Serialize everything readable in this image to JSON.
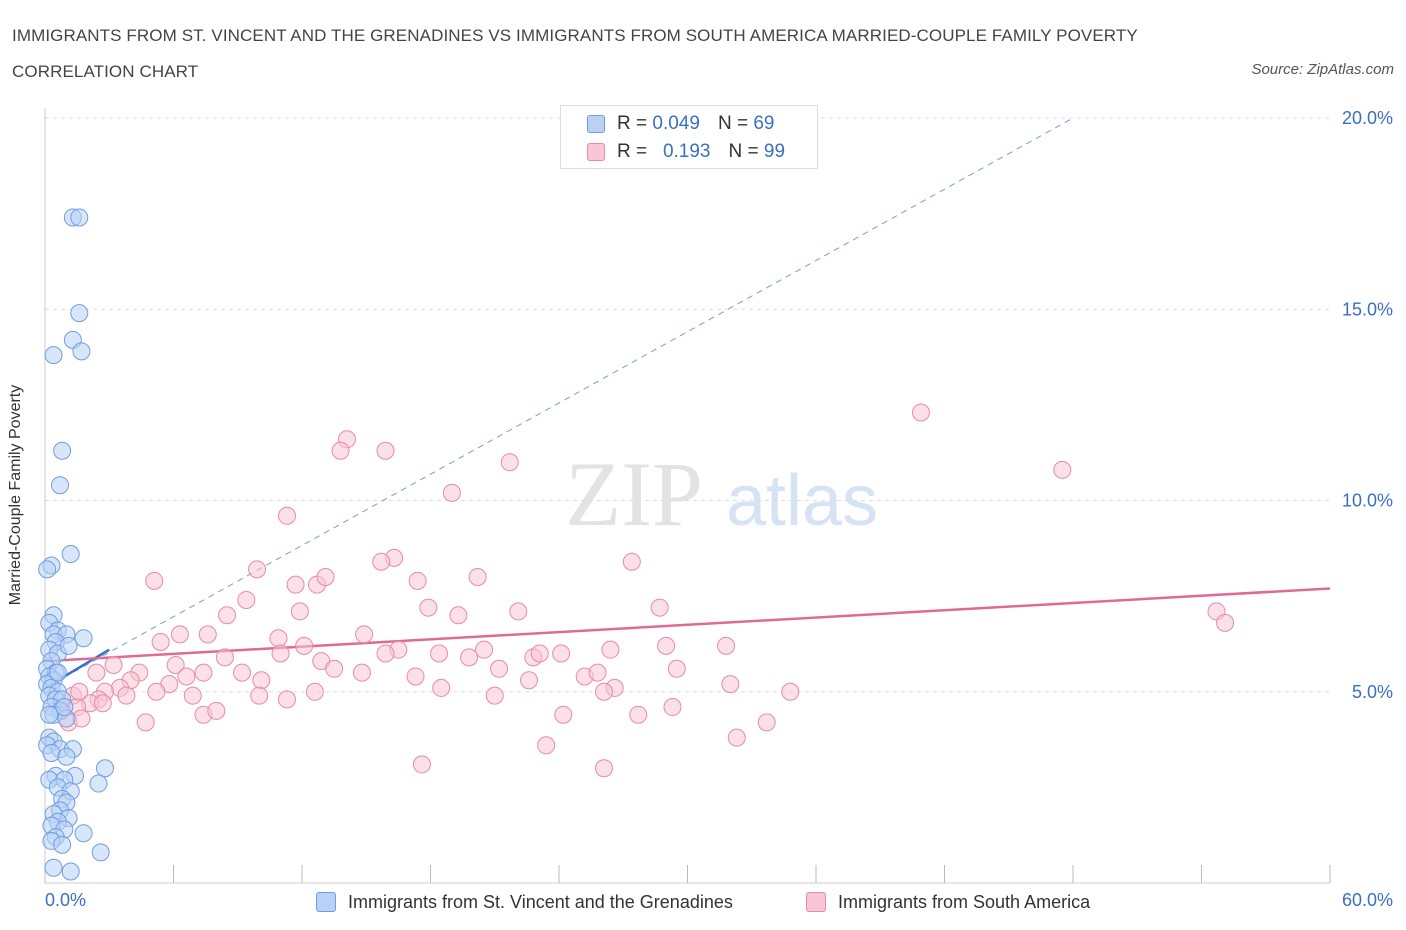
{
  "title": "IMMIGRANTS FROM ST. VINCENT AND THE GRENADINES VS IMMIGRANTS FROM SOUTH AMERICA MARRIED-COUPLE FAMILY POVERTY CORRELATION CHART",
  "source": "Source: ZipAtlas.com",
  "watermark": {
    "zip": "ZIP",
    "atlas": "atlas"
  },
  "legend": {
    "rows": [
      {
        "r_label": "R =",
        "r_value": "0.049",
        "n_label": "N =",
        "n_value": "69"
      },
      {
        "r_label": "R =",
        "r_value": "0.193",
        "n_label": "N =",
        "n_value": "99"
      }
    ]
  },
  "bottom_legend": [
    "Immigrants from St. Vincent and the Grenadines",
    "Immigrants from South America"
  ],
  "colors": {
    "blue_fill": "#b8d1f5",
    "blue_stroke": "#6f9ee0",
    "blue_line": "#3a6fd0",
    "pink_fill": "#f8c6d4",
    "pink_stroke": "#e98aa8",
    "pink_line": "#e06a96",
    "tick_label": "#3a6fc4",
    "grid": "#dddddd"
  },
  "chart_data": {
    "type": "scatter",
    "xlabel": "",
    "ylabel": "Married-Couple Family Poverty",
    "xlim": [
      0,
      60
    ],
    "ylim": [
      0,
      20
    ],
    "x_tick_labels": [
      "0.0%",
      "60.0%"
    ],
    "y_ticks": [
      5,
      10,
      15,
      20
    ],
    "y_tick_labels": [
      "5.0%",
      "10.0%",
      "15.0%",
      "20.0%"
    ],
    "grid": "horizontal dashed",
    "legend_placement": "top-center",
    "series": [
      {
        "name": "Immigrants from St. Vincent and the Grenadines",
        "r": 0.049,
        "n": 69,
        "trend_solid": [
          [
            0,
            5.1
          ],
          [
            3,
            6.1
          ]
        ],
        "trend_dashed": [
          [
            0,
            5.1
          ],
          [
            48,
            20
          ]
        ],
        "points": [
          [
            1.3,
            17.4
          ],
          [
            1.6,
            17.4
          ],
          [
            1.6,
            14.9
          ],
          [
            1.3,
            14.2
          ],
          [
            1.7,
            13.9
          ],
          [
            0.4,
            13.8
          ],
          [
            0.8,
            11.3
          ],
          [
            0.7,
            10.4
          ],
          [
            1.2,
            8.6
          ],
          [
            0.3,
            8.3
          ],
          [
            0.1,
            8.2
          ],
          [
            0.4,
            7.0
          ],
          [
            0.2,
            6.8
          ],
          [
            0.6,
            6.6
          ],
          [
            0.4,
            6.5
          ],
          [
            1.0,
            6.5
          ],
          [
            1.8,
            6.4
          ],
          [
            0.5,
            6.3
          ],
          [
            0.2,
            6.1
          ],
          [
            0.6,
            6.0
          ],
          [
            0.3,
            5.8
          ],
          [
            0.1,
            5.6
          ],
          [
            0.5,
            5.5
          ],
          [
            0.2,
            5.4
          ],
          [
            0.4,
            5.3
          ],
          [
            0.1,
            5.2
          ],
          [
            0.3,
            5.1
          ],
          [
            0.6,
            5.0
          ],
          [
            0.2,
            4.9
          ],
          [
            0.5,
            4.8
          ],
          [
            0.8,
            4.8
          ],
          [
            0.3,
            4.6
          ],
          [
            0.7,
            4.5
          ],
          [
            0.4,
            4.4
          ],
          [
            1.0,
            4.3
          ],
          [
            0.2,
            3.8
          ],
          [
            0.4,
            3.7
          ],
          [
            0.1,
            3.6
          ],
          [
            0.7,
            3.5
          ],
          [
            1.3,
            3.5
          ],
          [
            0.3,
            3.4
          ],
          [
            1.0,
            3.3
          ],
          [
            2.8,
            3.0
          ],
          [
            1.4,
            2.8
          ],
          [
            0.5,
            2.8
          ],
          [
            0.2,
            2.7
          ],
          [
            0.9,
            2.7
          ],
          [
            2.5,
            2.6
          ],
          [
            0.6,
            2.5
          ],
          [
            1.2,
            2.4
          ],
          [
            0.8,
            2.2
          ],
          [
            1.0,
            2.1
          ],
          [
            0.7,
            1.9
          ],
          [
            0.4,
            1.8
          ],
          [
            1.1,
            1.7
          ],
          [
            0.6,
            1.6
          ],
          [
            0.3,
            1.5
          ],
          [
            0.9,
            1.4
          ],
          [
            1.8,
            1.3
          ],
          [
            0.5,
            1.2
          ],
          [
            0.3,
            1.1
          ],
          [
            0.8,
            1.0
          ],
          [
            2.6,
            0.8
          ],
          [
            0.4,
            0.4
          ],
          [
            1.2,
            0.3
          ],
          [
            0.6,
            5.5
          ],
          [
            0.9,
            4.6
          ],
          [
            1.1,
            6.2
          ],
          [
            0.2,
            4.4
          ]
        ]
      },
      {
        "name": "Immigrants from South America",
        "r": 0.193,
        "n": 99,
        "trend": [
          [
            0,
            5.8
          ],
          [
            60,
            7.7
          ]
        ],
        "points": [
          [
            40.9,
            12.3
          ],
          [
            47.5,
            10.8
          ],
          [
            14.1,
            11.6
          ],
          [
            13.8,
            11.3
          ],
          [
            15.9,
            11.3
          ],
          [
            21.7,
            11.0
          ],
          [
            19.0,
            10.2
          ],
          [
            11.3,
            9.6
          ],
          [
            16.3,
            8.5
          ],
          [
            15.7,
            8.4
          ],
          [
            27.4,
            8.4
          ],
          [
            9.9,
            8.2
          ],
          [
            5.1,
            7.9
          ],
          [
            11.7,
            7.8
          ],
          [
            12.7,
            7.8
          ],
          [
            17.4,
            7.9
          ],
          [
            20.2,
            8.0
          ],
          [
            13.1,
            8.0
          ],
          [
            9.4,
            7.4
          ],
          [
            17.9,
            7.2
          ],
          [
            8.5,
            7.0
          ],
          [
            11.9,
            7.1
          ],
          [
            19.3,
            7.0
          ],
          [
            22.1,
            7.1
          ],
          [
            28.7,
            7.2
          ],
          [
            54.7,
            7.1
          ],
          [
            55.1,
            6.8
          ],
          [
            6.3,
            6.5
          ],
          [
            7.6,
            6.5
          ],
          [
            10.9,
            6.4
          ],
          [
            14.9,
            6.5
          ],
          [
            5.4,
            6.3
          ],
          [
            12.1,
            6.2
          ],
          [
            16.5,
            6.1
          ],
          [
            18.4,
            6.0
          ],
          [
            20.5,
            6.1
          ],
          [
            24.1,
            6.0
          ],
          [
            26.4,
            6.1
          ],
          [
            31.8,
            6.2
          ],
          [
            8.4,
            5.9
          ],
          [
            11.0,
            6.0
          ],
          [
            12.9,
            5.8
          ],
          [
            19.8,
            5.9
          ],
          [
            22.8,
            5.9
          ],
          [
            23.1,
            6.0
          ],
          [
            3.2,
            5.7
          ],
          [
            6.1,
            5.7
          ],
          [
            7.4,
            5.5
          ],
          [
            9.2,
            5.5
          ],
          [
            13.5,
            5.6
          ],
          [
            14.8,
            5.5
          ],
          [
            17.3,
            5.4
          ],
          [
            21.2,
            5.6
          ],
          [
            25.2,
            5.4
          ],
          [
            29.5,
            5.6
          ],
          [
            2.4,
            5.5
          ],
          [
            4.4,
            5.5
          ],
          [
            4.0,
            5.3
          ],
          [
            6.6,
            5.4
          ],
          [
            10.1,
            5.3
          ],
          [
            22.6,
            5.3
          ],
          [
            32.0,
            5.2
          ],
          [
            3.5,
            5.1
          ],
          [
            5.8,
            5.2
          ],
          [
            18.5,
            5.1
          ],
          [
            26.6,
            5.1
          ],
          [
            2.8,
            5.0
          ],
          [
            3.8,
            4.9
          ],
          [
            6.9,
            4.9
          ],
          [
            10.0,
            4.9
          ],
          [
            11.3,
            4.8
          ],
          [
            21.0,
            4.9
          ],
          [
            26.1,
            5.0
          ],
          [
            34.8,
            5.0
          ],
          [
            1.3,
            4.9
          ],
          [
            2.5,
            4.8
          ],
          [
            2.1,
            4.7
          ],
          [
            1.5,
            4.6
          ],
          [
            29.3,
            4.6
          ],
          [
            0.8,
            4.5
          ],
          [
            7.4,
            4.4
          ],
          [
            8.0,
            4.5
          ],
          [
            24.2,
            4.4
          ],
          [
            27.7,
            4.4
          ],
          [
            4.7,
            4.2
          ],
          [
            1.1,
            4.2
          ],
          [
            33.7,
            4.2
          ],
          [
            32.3,
            3.8
          ],
          [
            23.4,
            3.6
          ],
          [
            17.6,
            3.1
          ],
          [
            26.1,
            3.0
          ],
          [
            2.7,
            4.7
          ],
          [
            1.7,
            4.3
          ],
          [
            5.2,
            5.0
          ],
          [
            1.6,
            5.0
          ],
          [
            12.6,
            5.0
          ],
          [
            25.8,
            5.5
          ],
          [
            15.9,
            6.0
          ],
          [
            29.0,
            6.2
          ]
        ]
      }
    ]
  }
}
